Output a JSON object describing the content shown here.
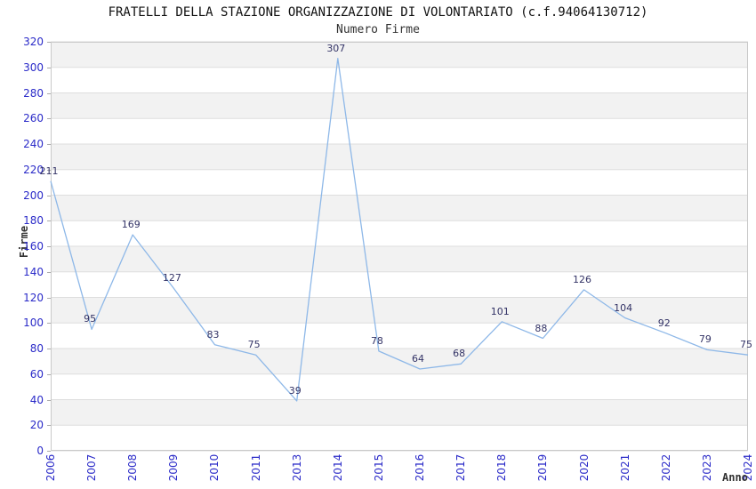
{
  "page": {
    "background": "#ffffff"
  },
  "chart_data": {
    "type": "line",
    "title": "FRATELLI DELLA STAZIONE ORGANIZZAZIONE DI VOLONTARIATO (c.f.94064130712)",
    "subtitle": "Numero Firme",
    "xlabel": "Anno",
    "ylabel": "Firme",
    "categories": [
      "2006",
      "2007",
      "2008",
      "2009",
      "2010",
      "2011",
      "2013",
      "2014",
      "2015",
      "2016",
      "2017",
      "2018",
      "2019",
      "2020",
      "2021",
      "2022",
      "2023",
      "2024"
    ],
    "values": [
      211,
      95,
      169,
      127,
      83,
      75,
      39,
      307,
      78,
      64,
      68,
      101,
      88,
      126,
      104,
      92,
      79,
      75
    ],
    "ylim": [
      0,
      320
    ],
    "ytick_step": 20,
    "legend": "none",
    "grid": "horizontal gridlines with alternating shaded bands",
    "data_labels_shown": true,
    "x_tick_rotation_degrees": -90,
    "colors": {
      "line": "#8eb8e8",
      "tick_label": "#2a2ac8",
      "data_label": "#333366",
      "band_fill": "#f2f2f2",
      "grid_line": "#dedede",
      "plot_border": "#c9c9c9",
      "title_text": "#111111",
      "subtitle_text": "#333333",
      "axis_title_text": "#333333",
      "background": "#ffffff"
    }
  }
}
